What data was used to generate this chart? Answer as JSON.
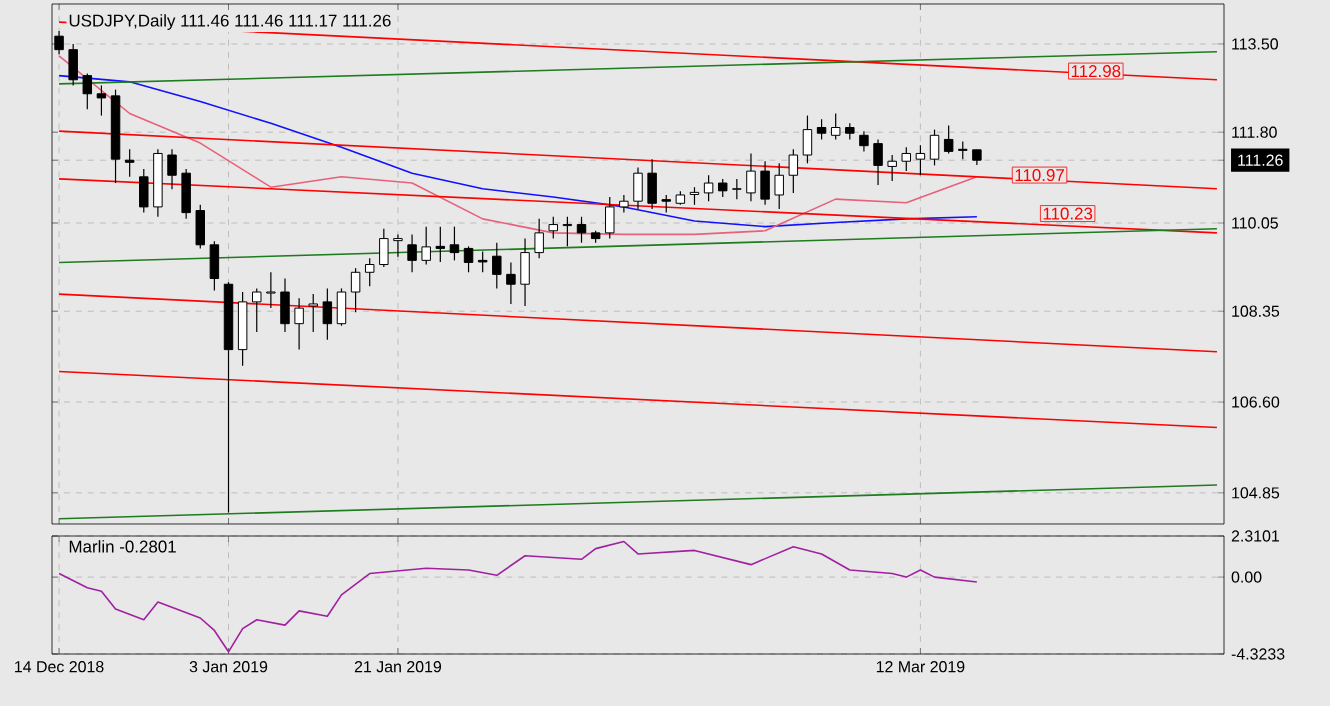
{
  "chart_data": [
    {
      "type": "candlestick",
      "title": "USDJPY,Daily 111.46 111.46 111.17 111.26",
      "categories": [
        null,
        null,
        null,
        null,
        null,
        null,
        null,
        null,
        null,
        null,
        null,
        null,
        null,
        null,
        null,
        null,
        null,
        null,
        null,
        null,
        null,
        null,
        null,
        null,
        null,
        null,
        null,
        null,
        null,
        null,
        null,
        null,
        null,
        null,
        null,
        null,
        null,
        null,
        null,
        null,
        null,
        null,
        null,
        null,
        null,
        null,
        null,
        null,
        null,
        null,
        null,
        null,
        null,
        null,
        null,
        null,
        null,
        null,
        null,
        null,
        null,
        null,
        null,
        null,
        null,
        null,
        null,
        null,
        null,
        null,
        null,
        null,
        null,
        null,
        null,
        null,
        null,
        null,
        null,
        null,
        null,
        null,
        null
      ],
      "ohlc": [
        [
          113.65,
          113.75,
          113.3,
          113.39
        ],
        [
          113.39,
          113.5,
          112.7,
          112.81
        ],
        [
          112.89,
          112.93,
          112.24,
          112.54
        ],
        [
          112.54,
          112.7,
          112.12,
          112.46
        ],
        [
          112.5,
          112.62,
          110.82,
          111.28
        ],
        [
          111.26,
          111.47,
          110.94,
          111.22
        ],
        [
          110.94,
          111.09,
          110.25,
          110.36
        ],
        [
          110.36,
          111.47,
          110.17,
          111.39
        ],
        [
          111.36,
          111.47,
          110.7,
          110.97
        ],
        [
          111.01,
          111.09,
          110.13,
          110.25
        ],
        [
          110.29,
          110.4,
          109.56,
          109.63
        ],
        [
          109.63,
          109.7,
          108.75,
          108.98
        ],
        [
          108.87,
          108.91,
          104.47,
          107.61
        ],
        [
          107.61,
          108.72,
          107.3,
          108.53
        ],
        [
          108.53,
          108.79,
          107.95,
          108.72
        ],
        [
          108.7,
          109.1,
          108.41,
          108.72
        ],
        [
          108.72,
          108.98,
          107.95,
          108.11
        ],
        [
          108.11,
          108.6,
          107.61,
          108.41
        ],
        [
          108.45,
          108.68,
          107.95,
          108.49
        ],
        [
          108.53,
          108.79,
          107.8,
          108.11
        ],
        [
          108.11,
          108.79,
          108.07,
          108.72
        ],
        [
          108.72,
          109.18,
          108.33,
          109.1
        ],
        [
          109.1,
          109.37,
          108.83,
          109.25
        ],
        [
          109.25,
          109.94,
          109.2,
          109.75
        ],
        [
          109.71,
          109.83,
          109.4,
          109.75
        ],
        [
          109.63,
          109.83,
          109.1,
          109.33
        ],
        [
          109.33,
          109.98,
          109.25,
          109.59
        ],
        [
          109.6,
          109.98,
          109.3,
          109.56
        ],
        [
          109.63,
          109.98,
          109.33,
          109.48
        ],
        [
          109.56,
          109.6,
          109.1,
          109.29
        ],
        [
          109.33,
          109.5,
          109.1,
          109.3
        ],
        [
          109.41,
          109.67,
          108.79,
          109.06
        ],
        [
          109.06,
          109.29,
          108.49,
          108.87
        ],
        [
          108.87,
          109.75,
          108.45,
          109.48
        ],
        [
          109.48,
          110.13,
          109.37,
          109.86
        ],
        [
          109.9,
          110.17,
          109.75,
          110.02
        ],
        [
          110.0,
          110.17,
          109.6,
          110.02
        ],
        [
          110.02,
          110.17,
          109.67,
          109.86
        ],
        [
          109.86,
          109.9,
          109.67,
          109.75
        ],
        [
          109.86,
          110.55,
          109.75,
          110.36
        ],
        [
          110.36,
          110.59,
          110.25,
          110.47
        ],
        [
          110.47,
          111.12,
          110.32,
          111.01
        ],
        [
          111.01,
          111.28,
          110.32,
          110.43
        ],
        [
          110.5,
          110.59,
          110.25,
          110.47
        ],
        [
          110.43,
          110.66,
          110.4,
          110.59
        ],
        [
          110.6,
          110.74,
          110.4,
          110.64
        ],
        [
          110.63,
          110.97,
          110.47,
          110.82
        ],
        [
          110.82,
          110.9,
          110.55,
          110.67
        ],
        [
          110.7,
          110.9,
          110.51,
          110.71
        ],
        [
          110.63,
          111.39,
          110.47,
          111.05
        ],
        [
          111.05,
          111.24,
          110.4,
          110.51
        ],
        [
          110.59,
          111.2,
          110.32,
          110.97
        ],
        [
          110.97,
          111.47,
          110.63,
          111.36
        ],
        [
          111.36,
          112.12,
          111.2,
          111.85
        ],
        [
          111.89,
          112.05,
          111.66,
          111.78
        ],
        [
          111.74,
          112.16,
          111.66,
          111.89
        ],
        [
          111.89,
          111.97,
          111.66,
          111.78
        ],
        [
          111.74,
          111.82,
          111.43,
          111.54
        ],
        [
          111.58,
          111.66,
          110.78,
          111.16
        ],
        [
          111.14,
          111.36,
          110.86,
          111.24
        ],
        [
          111.24,
          111.51,
          111.05,
          111.39
        ],
        [
          111.28,
          111.55,
          110.97,
          111.39
        ],
        [
          111.28,
          111.85,
          111.16,
          111.74
        ],
        [
          111.66,
          111.93,
          111.39,
          111.43
        ],
        [
          111.47,
          111.62,
          111.28,
          111.45
        ],
        [
          111.46,
          111.46,
          111.17,
          111.26
        ],
        null,
        null,
        null,
        null,
        null,
        null,
        null,
        null,
        null,
        null,
        null,
        null,
        null,
        null,
        null,
        null,
        null
      ],
      "series": [
        {
          "type": "line",
          "color": "#1010ff",
          "values": [
            112.89,
            null,
            null,
            null,
            null,
            112.77,
            null,
            null,
            null,
            null,
            112.39,
            null,
            null,
            null,
            null,
            111.97,
            null,
            null,
            null,
            null,
            111.51,
            null,
            null,
            null,
            null,
            111.01,
            null,
            null,
            null,
            null,
            110.71,
            null,
            null,
            null,
            null,
            110.55,
            null,
            null,
            null,
            null,
            110.36,
            null,
            null,
            null,
            null,
            110.09,
            null,
            null,
            null,
            null,
            109.98,
            null,
            null,
            null,
            null,
            110.06,
            null,
            null,
            null,
            null,
            110.13,
            null,
            null,
            null,
            null,
            110.17,
            null,
            null,
            null,
            null,
            null,
            null,
            null,
            null,
            null,
            null,
            null,
            null,
            null,
            null,
            null,
            null,
            null
          ]
        },
        {
          "type": "line",
          "color": "#e8607a",
          "values": [
            113.27,
            null,
            null,
            null,
            null,
            112.16,
            null,
            null,
            null,
            null,
            111.59,
            null,
            null,
            null,
            null,
            110.74,
            null,
            null,
            null,
            null,
            110.94,
            null,
            null,
            null,
            null,
            110.82,
            null,
            null,
            null,
            null,
            110.13,
            null,
            null,
            null,
            null,
            109.86,
            null,
            null,
            null,
            null,
            109.83,
            null,
            null,
            null,
            null,
            109.83,
            null,
            null,
            null,
            null,
            109.9,
            null,
            null,
            null,
            null,
            110.51,
            null,
            null,
            null,
            null,
            110.44,
            null,
            null,
            null,
            null,
            110.94,
            null,
            null,
            null,
            null,
            null,
            null,
            null,
            null,
            null,
            null,
            null,
            null,
            null,
            null,
            null,
            null,
            null
          ]
        },
        {
          "type": "line",
          "color": "#ff0000",
          "values": [
            113.92,
            null,
            null,
            null,
            null,
            null,
            null,
            null,
            null,
            null,
            null,
            null,
            null,
            null,
            null,
            null,
            null,
            null,
            null,
            null,
            null,
            null,
            null,
            null,
            null,
            null,
            null,
            null,
            null,
            null,
            null,
            null,
            null,
            null,
            null,
            null,
            null,
            null,
            null,
            null,
            null,
            null,
            null,
            null,
            null,
            null,
            null,
            null,
            null,
            null,
            null,
            null,
            null,
            null,
            null,
            null,
            null,
            null,
            null,
            null,
            null,
            null,
            null,
            null,
            null,
            null,
            null,
            null,
            null,
            null,
            null,
            null,
            null,
            null,
            null,
            null,
            null,
            null,
            null,
            null,
            null,
            null,
            112.81
          ]
        },
        {
          "type": "line",
          "color": "#1e7b1e",
          "values": [
            112.73,
            null,
            null,
            null,
            null,
            null,
            null,
            null,
            null,
            null,
            null,
            null,
            null,
            null,
            null,
            null,
            null,
            null,
            null,
            null,
            null,
            null,
            null,
            null,
            null,
            null,
            null,
            null,
            null,
            null,
            null,
            null,
            null,
            null,
            null,
            null,
            null,
            null,
            null,
            null,
            null,
            null,
            null,
            null,
            null,
            null,
            null,
            null,
            null,
            null,
            null,
            null,
            null,
            null,
            null,
            null,
            null,
            null,
            null,
            null,
            null,
            null,
            null,
            null,
            null,
            null,
            null,
            null,
            null,
            null,
            null,
            null,
            null,
            null,
            null,
            null,
            null,
            null,
            null,
            null,
            null,
            null,
            113.35
          ]
        },
        {
          "type": "line",
          "color": "#ff0000",
          "values": [
            111.82,
            null,
            null,
            null,
            null,
            null,
            null,
            null,
            null,
            null,
            null,
            null,
            null,
            null,
            null,
            null,
            null,
            null,
            null,
            null,
            null,
            null,
            null,
            null,
            null,
            null,
            null,
            null,
            null,
            null,
            null,
            null,
            null,
            null,
            null,
            null,
            null,
            null,
            null,
            null,
            null,
            null,
            null,
            null,
            null,
            null,
            null,
            null,
            null,
            null,
            null,
            null,
            null,
            null,
            null,
            null,
            null,
            null,
            null,
            null,
            null,
            null,
            null,
            null,
            null,
            null,
            null,
            null,
            null,
            null,
            null,
            null,
            null,
            null,
            null,
            null,
            null,
            null,
            null,
            null,
            null,
            null,
            110.71
          ]
        },
        {
          "type": "line",
          "color": "#ff0000",
          "values": [
            110.9,
            null,
            null,
            null,
            null,
            null,
            null,
            null,
            null,
            null,
            null,
            null,
            null,
            null,
            null,
            null,
            null,
            null,
            null,
            null,
            null,
            null,
            null,
            null,
            null,
            null,
            null,
            null,
            null,
            null,
            null,
            null,
            null,
            null,
            null,
            null,
            null,
            null,
            null,
            null,
            null,
            null,
            null,
            null,
            null,
            null,
            null,
            null,
            null,
            null,
            null,
            null,
            null,
            null,
            null,
            null,
            null,
            null,
            null,
            null,
            null,
            null,
            null,
            null,
            null,
            null,
            null,
            null,
            null,
            null,
            null,
            null,
            null,
            null,
            null,
            null,
            null,
            null,
            null,
            null,
            null,
            null,
            109.86
          ]
        },
        {
          "type": "line",
          "color": "#1e7b1e",
          "values": [
            109.29,
            null,
            null,
            null,
            null,
            null,
            null,
            null,
            null,
            null,
            null,
            null,
            null,
            null,
            null,
            null,
            null,
            null,
            null,
            null,
            null,
            null,
            null,
            null,
            null,
            null,
            null,
            null,
            null,
            null,
            null,
            null,
            null,
            null,
            null,
            null,
            null,
            null,
            null,
            null,
            null,
            null,
            null,
            null,
            null,
            null,
            null,
            null,
            null,
            null,
            null,
            null,
            null,
            null,
            null,
            null,
            null,
            null,
            null,
            null,
            null,
            null,
            null,
            null,
            null,
            null,
            null,
            null,
            null,
            null,
            null,
            null,
            null,
            null,
            null,
            null,
            null,
            null,
            null,
            null,
            null,
            null,
            109.94
          ]
        },
        {
          "type": "line",
          "color": "#ff0000",
          "values": [
            108.68,
            null,
            null,
            null,
            null,
            null,
            null,
            null,
            null,
            null,
            null,
            null,
            null,
            null,
            null,
            null,
            null,
            null,
            null,
            null,
            null,
            null,
            null,
            null,
            null,
            null,
            null,
            null,
            null,
            null,
            null,
            null,
            null,
            null,
            null,
            null,
            null,
            null,
            null,
            null,
            null,
            null,
            null,
            null,
            null,
            null,
            null,
            null,
            null,
            null,
            null,
            null,
            null,
            null,
            null,
            null,
            null,
            null,
            null,
            null,
            null,
            null,
            null,
            null,
            null,
            null,
            null,
            null,
            null,
            null,
            null,
            null,
            null,
            null,
            null,
            null,
            null,
            null,
            null,
            null,
            null,
            null,
            107.57
          ]
        },
        {
          "type": "line",
          "color": "#ff0000",
          "values": [
            107.19,
            null,
            null,
            null,
            null,
            null,
            null,
            null,
            null,
            null,
            null,
            null,
            null,
            null,
            null,
            null,
            null,
            null,
            null,
            null,
            null,
            null,
            null,
            null,
            null,
            null,
            null,
            null,
            null,
            null,
            null,
            null,
            null,
            null,
            null,
            null,
            null,
            null,
            null,
            null,
            null,
            null,
            null,
            null,
            null,
            null,
            null,
            null,
            null,
            null,
            null,
            null,
            null,
            null,
            null,
            null,
            null,
            null,
            null,
            null,
            null,
            null,
            null,
            null,
            null,
            null,
            null,
            null,
            null,
            null,
            null,
            null,
            null,
            null,
            null,
            null,
            null,
            null,
            null,
            null,
            null,
            null,
            106.11
          ]
        },
        {
          "type": "line",
          "color": "#1e7b1e",
          "values": [
            104.35,
            null,
            null,
            null,
            null,
            null,
            null,
            null,
            null,
            null,
            null,
            null,
            null,
            null,
            null,
            null,
            null,
            null,
            null,
            null,
            null,
            null,
            null,
            null,
            null,
            null,
            null,
            null,
            null,
            null,
            null,
            null,
            null,
            null,
            null,
            null,
            null,
            null,
            null,
            null,
            null,
            null,
            null,
            null,
            null,
            null,
            null,
            null,
            null,
            null,
            null,
            null,
            null,
            null,
            null,
            null,
            null,
            null,
            null,
            null,
            null,
            null,
            null,
            null,
            null,
            null,
            null,
            null,
            null,
            null,
            null,
            null,
            null,
            null,
            null,
            null,
            null,
            null,
            null,
            null,
            null,
            null,
            105.0
          ]
        }
      ],
      "ylim": [
        104.25,
        114.27
      ],
      "yticks": [
        104.85,
        {
          "value": 106.6,
          "label": "106.60"
        },
        108.35,
        110.05,
        {
          "value": 111.8,
          "label": "111.80"
        },
        {
          "value": 113.5,
          "label": "113.50"
        },
        111.26
      ],
      "grid": true,
      "tick_labels": "y",
      "annotations": [
        "112.98",
        "110.97",
        "110.23"
      ]
    },
    {
      "type": "line",
      "title": "Marlin -0.2801",
      "categories": [
        "14 Dec 2018",
        null,
        null,
        null,
        null,
        null,
        null,
        null,
        null,
        null,
        null,
        null,
        "3 Jan 2019",
        null,
        null,
        null,
        null,
        null,
        null,
        null,
        null,
        null,
        null,
        null,
        "21 Jan 2019",
        null,
        null,
        null,
        null,
        null,
        null,
        null,
        null,
        null,
        null,
        null,
        null,
        null,
        null,
        null,
        null,
        null,
        null,
        null,
        null,
        null,
        null,
        null,
        null,
        null,
        null,
        null,
        null,
        null,
        null,
        null,
        null,
        null,
        null,
        null,
        null,
        "12 Mar 2019",
        null,
        null,
        null,
        null,
        null,
        null,
        null,
        null,
        null,
        null,
        null,
        null,
        null,
        null,
        null,
        null,
        null,
        null,
        null,
        null,
        null
      ],
      "series": [
        {
          "color": "#a020a0",
          "values": [
            0.2,
            null,
            -0.6,
            -0.8,
            -1.8,
            null,
            -2.4,
            -1.4,
            null,
            null,
            -2.3,
            -3.0,
            -4.2,
            -2.9,
            -2.4,
            null,
            -2.7,
            -1.9,
            null,
            -2.2,
            -1.0,
            null,
            0.2,
            null,
            null,
            null,
            0.5,
            null,
            null,
            0.4,
            null,
            0.1,
            null,
            1.2,
            null,
            null,
            null,
            1.0,
            1.6,
            null,
            2.0,
            1.3,
            null,
            null,
            null,
            1.5,
            null,
            1.1,
            null,
            0.7,
            null,
            null,
            1.7,
            null,
            1.3,
            null,
            0.4,
            null,
            null,
            0.2,
            0,
            0.4,
            0,
            null,
            null,
            -0.2801,
            null,
            null,
            null,
            null,
            null,
            null,
            null,
            null,
            null,
            null,
            null,
            null,
            null,
            null,
            null,
            null,
            null
          ]
        }
      ],
      "ylim": [
        -4.3233,
        2.3101
      ],
      "yticks": [
        -4.3233,
        {
          "value": 0,
          "label": "0.00"
        },
        2.3101
      ],
      "grid": true
    }
  ]
}
